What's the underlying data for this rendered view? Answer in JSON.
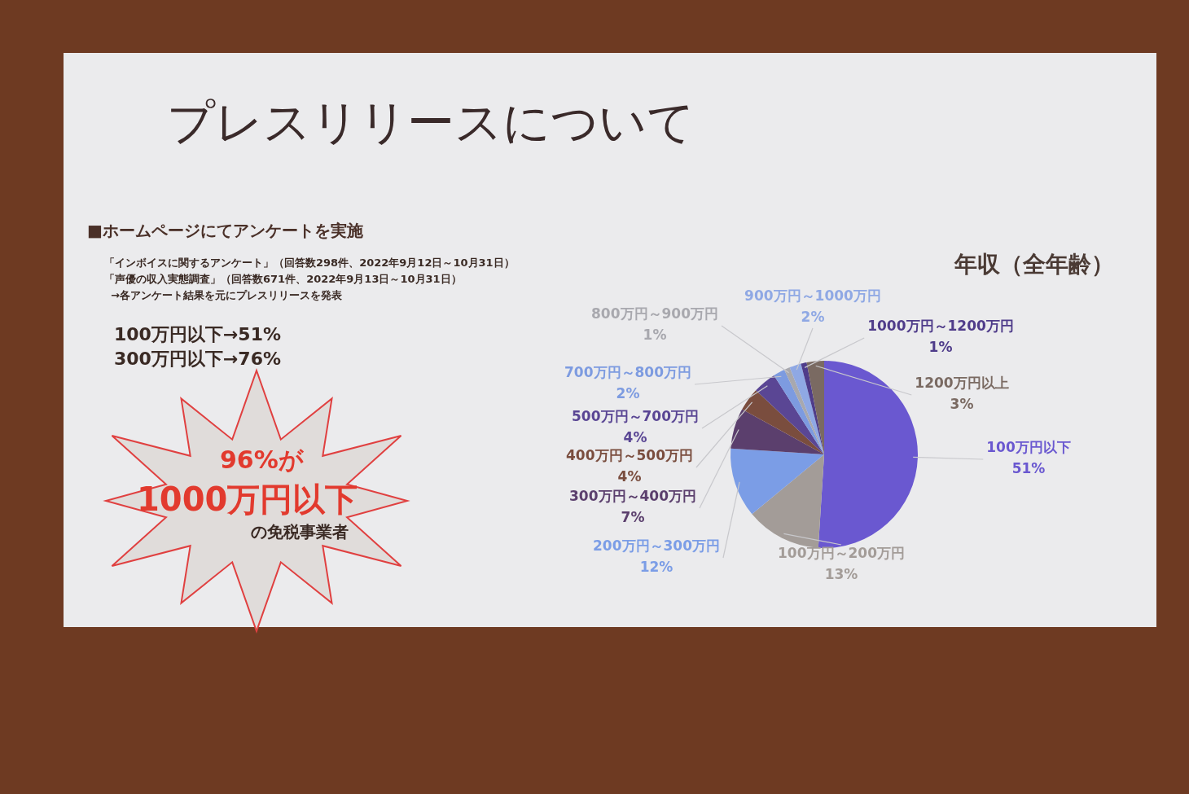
{
  "chart_data": {
    "type": "pie",
    "title": "プレスリリースについて",
    "subtitle": "年収（全年齢）",
    "categories": [
      "100万円以下",
      "100万円～200万円",
      "200万円～300万円",
      "300万円～400万円",
      "400万円～500万円",
      "500万円～700万円",
      "700万円～800万円",
      "800万円～900万円",
      "900万円～1000万円",
      "1000万円～1200万円",
      "1200万円以上"
    ],
    "values": [
      51,
      13,
      12,
      7,
      4,
      4,
      2,
      1,
      2,
      1,
      3
    ],
    "value_labels": [
      "51%",
      "13%",
      "12%",
      "7%",
      "4%",
      "4%",
      "2%",
      "1%",
      "2%",
      "1%",
      "3%"
    ],
    "colors": [
      "#6a58d0",
      "#a39c98",
      "#7b9de6",
      "#5b3f6d",
      "#7a4d3e",
      "#5a4694",
      "#7d9be0",
      "#a8a8ae",
      "#8fa8e4",
      "#4f3c8a",
      "#7a6a62"
    ],
    "annotations": [
      "■ホームページにてアンケートを実施",
      "「インボイスに関するアンケート」（回答数298件、2022年9月12日～10月31日）",
      "「声優の収入実態調査」（回答数671件、2022年9月13日～10月31日）",
      "→各アンケート結果を元にプレスリリースを発表",
      "100万円以下→51%",
      "300万円以下→76%",
      "96%が",
      "1000万円以下",
      "の免税事業者"
    ]
  }
}
